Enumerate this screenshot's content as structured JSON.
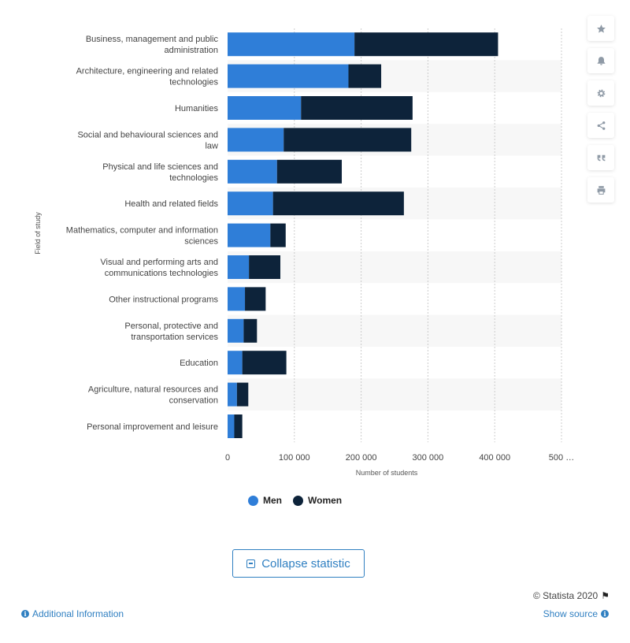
{
  "chart_data": {
    "type": "bar",
    "orientation": "horizontal",
    "stacked": true,
    "categories": [
      "Business, management and public administration",
      "Architecture, engineering and related technologies",
      "Humanities",
      "Social and behavioural sciences and law",
      "Physical and life sciences and technologies",
      "Health and related fields",
      "Mathematics, computer and information sciences",
      "Visual and performing arts and communications technologies",
      "Other instructional programs",
      "Personal, protective and transportation services",
      "Education",
      "Agriculture, natural resources and conservation",
      "Personal improvement and leisure"
    ],
    "series": [
      {
        "name": "Men",
        "color": "#2f7ed8",
        "values": [
          190000,
          181000,
          110000,
          84000,
          74000,
          68000,
          64000,
          32000,
          26000,
          24000,
          22000,
          14000,
          10000
        ]
      },
      {
        "name": "Women",
        "color": "#0d233a",
        "values": [
          215000,
          49000,
          167000,
          191000,
          97000,
          196000,
          23000,
          47000,
          31000,
          20000,
          66000,
          17000,
          12000
        ]
      }
    ],
    "xlabel": "Number of students",
    "ylabel": "Field of study",
    "xlim": [
      0,
      500000
    ],
    "x_ticks": [
      "0",
      "100 000",
      "200 000",
      "300 000",
      "400 000",
      "500 …"
    ],
    "x_tick_values": [
      0,
      100000,
      200000,
      300000,
      400000,
      500000
    ],
    "grid": true,
    "legend_position": "bottom"
  },
  "toolbar": {
    "icons": [
      "star-icon",
      "bell-icon",
      "gear-icon",
      "share-icon",
      "quote-icon",
      "print-icon"
    ]
  },
  "legend": {
    "men_label": "Men",
    "women_label": "Women"
  },
  "collapse_label": "Collapse statistic",
  "credit": "© Statista 2020",
  "additional_info": "Additional Information",
  "show_source": "Show source"
}
